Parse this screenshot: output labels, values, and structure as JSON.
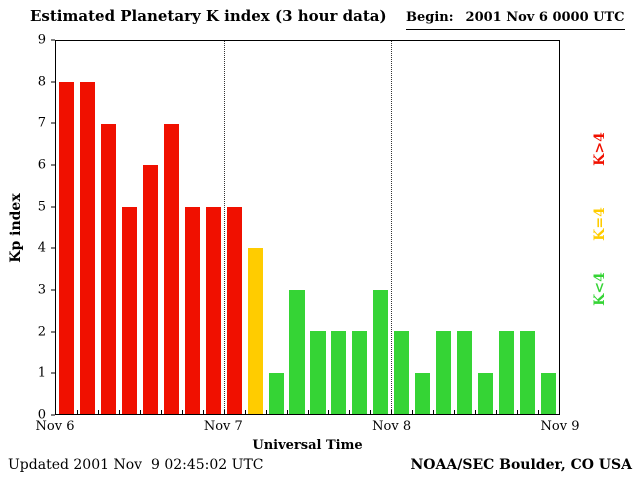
{
  "header": {
    "title": "Estimated Planetary K index (3 hour data)",
    "begin_label": "Begin:",
    "begin_value": "2001 Nov 6 0000 UTC"
  },
  "footer": {
    "updated": "Updated 2001 Nov  9 02:45:02 UTC",
    "credit": "NOAA/SEC Boulder, CO USA"
  },
  "legend": [
    {
      "label": "K>4",
      "color": "#f01000"
    },
    {
      "label": "K=4",
      "color": "#ffcc00"
    },
    {
      "label": "K<4",
      "color": "#35d435"
    }
  ],
  "chart_data": {
    "type": "bar",
    "title": "Estimated Planetary K index (3 hour data)",
    "begin": "2001 Nov 6 0000 UTC",
    "xlabel": "Universal Time",
    "ylabel": "Kp index",
    "ylim": [
      0,
      9
    ],
    "yticks": [
      0,
      1,
      2,
      3,
      4,
      5,
      6,
      7,
      8,
      9
    ],
    "x_tick_labels": [
      "Nov 6",
      "Nov 7",
      "Nov 8",
      "Nov 9"
    ],
    "interval_hours": 3,
    "bars_per_day": 8,
    "values": [
      8,
      8,
      7,
      5,
      6,
      7,
      5,
      5,
      5,
      4,
      1,
      3,
      2,
      2,
      2,
      3,
      2,
      1,
      2,
      2,
      1,
      2,
      2,
      1
    ],
    "bar_colors_rule": {
      "gt4": "#f01000",
      "eq4": "#ffcc00",
      "lt4": "#35d435"
    },
    "color_rule": "red if K>4, yellow if K=4, green if K<4",
    "day_boundaries_after_bar": [
      8,
      16
    ],
    "grid": "dotted vertical lines at day boundaries",
    "legend_position": "right side, rotated 90 degrees"
  }
}
